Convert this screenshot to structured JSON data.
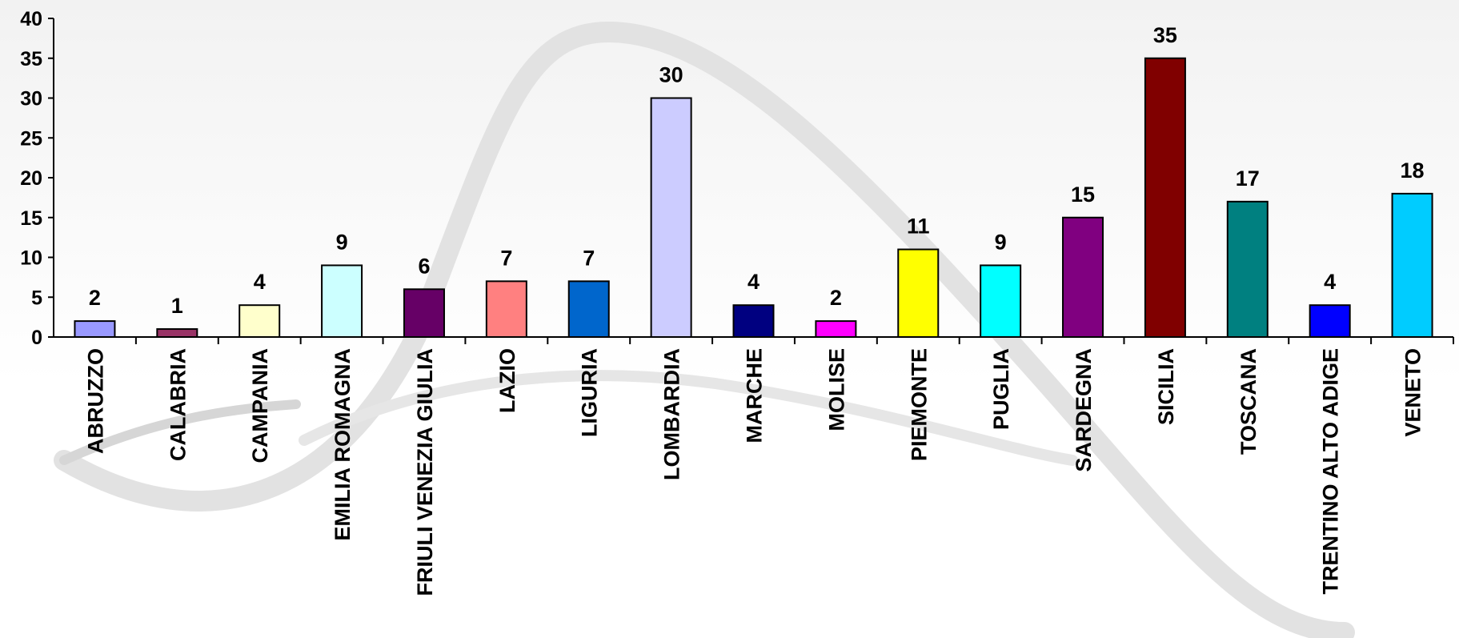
{
  "chart_data": {
    "type": "bar",
    "categories": [
      "ABRUZZO",
      "CALABRIA",
      "CAMPANIA",
      "EMILIA ROMAGNA",
      "FRIULI VENEZIA GIULIA",
      "LAZIO",
      "LIGURIA",
      "LOMBARDIA",
      "MARCHE",
      "MOLISE",
      "PIEMONTE",
      "PUGLIA",
      "SARDEGNA",
      "SICILIA",
      "TOSCANA",
      "TRENTINO ALTO ADIGE",
      "VENETO"
    ],
    "values": [
      2,
      1,
      4,
      9,
      6,
      7,
      7,
      30,
      4,
      2,
      11,
      9,
      15,
      35,
      17,
      4,
      18
    ],
    "colors": [
      "#9999ff",
      "#993366",
      "#ffffcc",
      "#ccffff",
      "#660066",
      "#ff8080",
      "#0066cc",
      "#ccccff",
      "#000080",
      "#ff00ff",
      "#ffff00",
      "#00ffff",
      "#800080",
      "#800000",
      "#008080",
      "#0000ff",
      "#00ccff"
    ],
    "ylim": [
      0,
      40
    ],
    "yticks": [
      0,
      5,
      10,
      15,
      20,
      25,
      30,
      35,
      40
    ],
    "grid": false
  }
}
